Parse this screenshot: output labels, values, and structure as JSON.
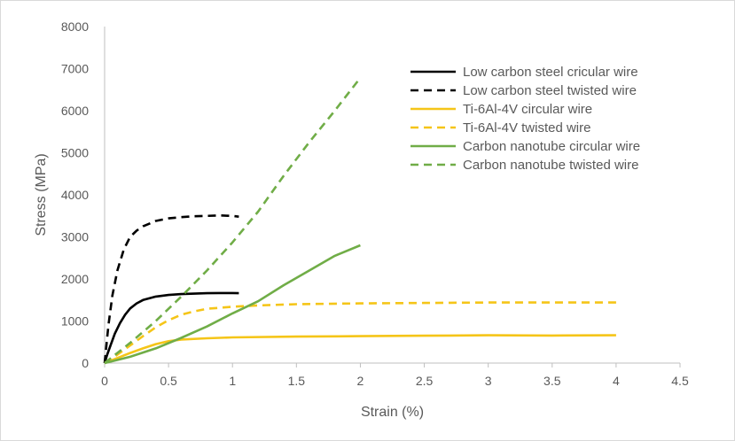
{
  "chart_data": {
    "type": "line",
    "title": "",
    "xlabel": "Strain (%)",
    "ylabel": "Stress (MPa)",
    "xlim": [
      0,
      4.5
    ],
    "ylim": [
      0,
      8000
    ],
    "x_ticks": [
      0,
      0.5,
      1,
      1.5,
      2,
      2.5,
      3,
      3.5,
      4,
      4.5
    ],
    "x_tick_labels": [
      "0",
      "0.5",
      "1",
      "1.5",
      "2",
      "2.5",
      "3",
      "3.5",
      "4",
      "4.5"
    ],
    "y_ticks": [
      0,
      1000,
      2000,
      3000,
      4000,
      5000,
      6000,
      7000,
      8000
    ],
    "y_tick_labels": [
      "0",
      "1000",
      "2000",
      "3000",
      "4000",
      "5000",
      "6000",
      "7000",
      "8000"
    ],
    "grid": false,
    "legend_position": "top-right",
    "series": [
      {
        "name": "Low carbon steel cricular wire",
        "color": "#000000",
        "dashed": false,
        "x": [
          0,
          0.02,
          0.05,
          0.08,
          0.12,
          0.16,
          0.2,
          0.25,
          0.3,
          0.4,
          0.5,
          0.6,
          0.7,
          0.8,
          0.9,
          1.0,
          1.05
        ],
        "y": [
          0,
          200,
          450,
          700,
          950,
          1150,
          1300,
          1420,
          1500,
          1580,
          1620,
          1640,
          1650,
          1660,
          1665,
          1665,
          1660
        ]
      },
      {
        "name": "Low carbon steel twisted wire",
        "color": "#000000",
        "dashed": true,
        "x": [
          0,
          0.03,
          0.06,
          0.1,
          0.15,
          0.2,
          0.25,
          0.3,
          0.4,
          0.5,
          0.6,
          0.7,
          0.8,
          0.9,
          1.0,
          1.05
        ],
        "y": [
          0,
          900,
          1600,
          2200,
          2700,
          3000,
          3150,
          3250,
          3380,
          3440,
          3470,
          3490,
          3500,
          3510,
          3500,
          3480
        ]
      },
      {
        "name": "Ti-6Al-4V circular wire",
        "color": "#f5c518",
        "dashed": false,
        "x": [
          0,
          0.1,
          0.2,
          0.3,
          0.4,
          0.5,
          0.6,
          0.8,
          1.0,
          1.5,
          2.0,
          2.5,
          3.0,
          3.5,
          4.0
        ],
        "y": [
          0,
          120,
          240,
          350,
          450,
          520,
          560,
          590,
          610,
          630,
          640,
          650,
          660,
          655,
          660
        ]
      },
      {
        "name": "Ti-6Al-4V twisted wire",
        "color": "#f5c518",
        "dashed": true,
        "x": [
          0,
          0.1,
          0.2,
          0.3,
          0.4,
          0.5,
          0.6,
          0.7,
          0.8,
          1.0,
          1.2,
          1.5,
          2.0,
          2.5,
          3.0,
          3.5,
          4.0
        ],
        "y": [
          0,
          200,
          420,
          640,
          850,
          1020,
          1150,
          1230,
          1290,
          1340,
          1370,
          1400,
          1420,
          1430,
          1440,
          1440,
          1440
        ]
      },
      {
        "name": "Carbon nanotube circular wire",
        "color": "#70ad47",
        "dashed": false,
        "x": [
          0,
          0.2,
          0.4,
          0.6,
          0.8,
          1.0,
          1.2,
          1.4,
          1.6,
          1.8,
          2.0
        ],
        "y": [
          0,
          150,
          350,
          600,
          870,
          1180,
          1470,
          1850,
          2200,
          2550,
          2800
        ]
      },
      {
        "name": "Carbon nanotube twisted wire",
        "color": "#70ad47",
        "dashed": true,
        "x": [
          0,
          0.2,
          0.4,
          0.6,
          0.8,
          1.0,
          1.2,
          1.4,
          1.6,
          1.8,
          2.0
        ],
        "y": [
          0,
          480,
          1000,
          1580,
          2200,
          2870,
          3600,
          4450,
          5250,
          6000,
          6780
        ]
      }
    ]
  }
}
